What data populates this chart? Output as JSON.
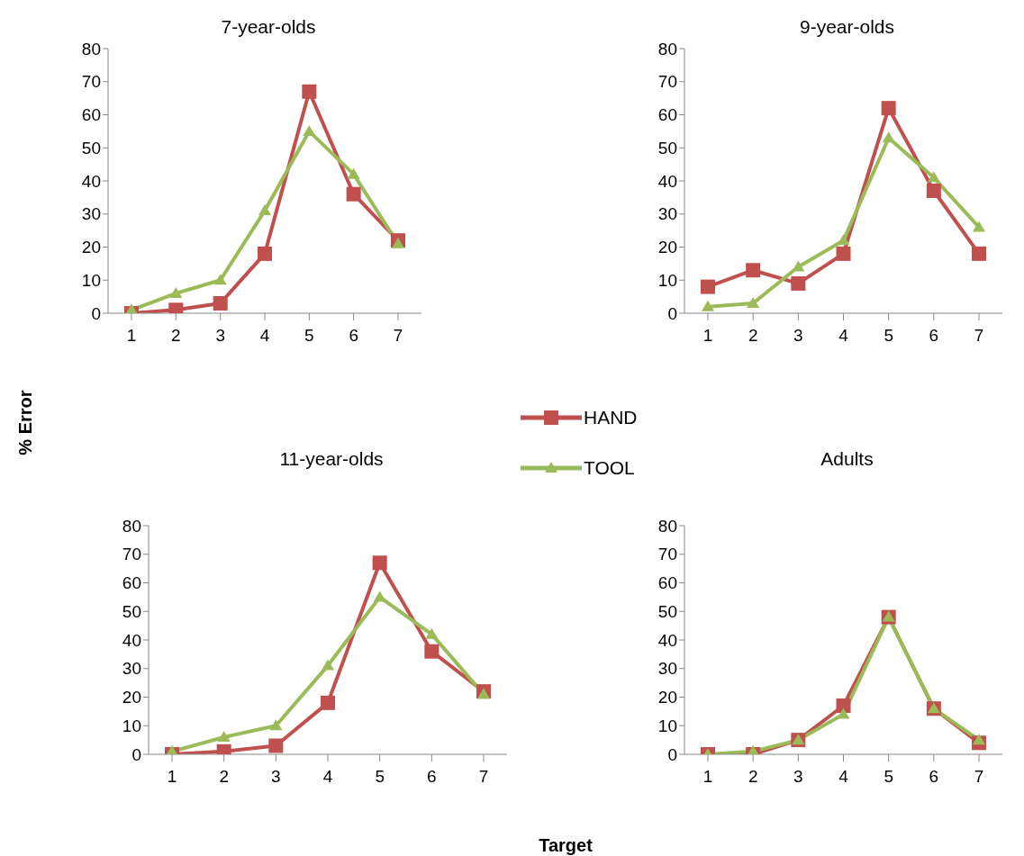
{
  "chart_data": [
    {
      "type": "line",
      "title": "7-year-olds",
      "ylabel": "% Error",
      "categories": [
        "1",
        "2",
        "3",
        "4",
        "5",
        "6",
        "7"
      ],
      "ylim": [
        0,
        80
      ],
      "yticks": [
        0,
        10,
        20,
        30,
        40,
        50,
        60,
        70,
        80
      ],
      "grid": false,
      "legend": "bottom right",
      "series": [
        {
          "name": "HAND",
          "color": "#c0504d",
          "marker": "square",
          "values": [
            0,
            1,
            3,
            18,
            67,
            36,
            22
          ]
        },
        {
          "name": "TOOL",
          "color": "#9bbb59",
          "marker": "triangle",
          "values": [
            1,
            6,
            10,
            31,
            55,
            42,
            21
          ]
        }
      ]
    },
    {
      "type": "line",
      "title": "9-year-olds",
      "categories": [
        "1",
        "2",
        "3",
        "4",
        "5",
        "6",
        "7"
      ],
      "ylim": [
        0,
        80
      ],
      "yticks": [
        0,
        10,
        20,
        30,
        40,
        50,
        60,
        70,
        80
      ],
      "grid": false,
      "series": [
        {
          "color": "#c0504d",
          "marker": "square",
          "values": [
            8,
            13,
            9,
            18,
            62,
            37,
            18
          ]
        },
        {
          "color": "#9bbb59",
          "marker": "triangle",
          "values": [
            2,
            3,
            14,
            22,
            53,
            41,
            26
          ]
        }
      ]
    },
    {
      "type": "line",
      "title": "11-year-olds",
      "xlabel": "Target",
      "categories": [
        "1",
        "2",
        "3",
        "4",
        "5",
        "6",
        "7"
      ],
      "ylim": [
        0,
        80
      ],
      "yticks": [
        0,
        10,
        20,
        30,
        40,
        50,
        60,
        70,
        80
      ],
      "grid": false,
      "series": [
        {
          "color": "#c0504d",
          "marker": "square",
          "values": [
            0,
            1,
            3,
            18,
            67,
            36,
            22
          ]
        },
        {
          "color": "#9bbb59",
          "marker": "triangle",
          "values": [
            1,
            6,
            10,
            31,
            55,
            42,
            21
          ]
        }
      ]
    },
    {
      "type": "line",
      "title": "Adults",
      "categories": [
        "1",
        "2",
        "3",
        "4",
        "5",
        "6",
        "7"
      ],
      "ylim": [
        0,
        80
      ],
      "yticks": [
        0,
        10,
        20,
        30,
        40,
        50,
        60,
        70,
        80
      ],
      "grid": false,
      "series": [
        {
          "color": "#c0504d",
          "marker": "square",
          "values": [
            0,
            0,
            5,
            17,
            48,
            16,
            4
          ]
        },
        {
          "color": "#9bbb59",
          "marker": "triangle",
          "values": [
            0,
            1,
            5,
            14,
            48,
            16,
            5
          ]
        }
      ]
    }
  ]
}
